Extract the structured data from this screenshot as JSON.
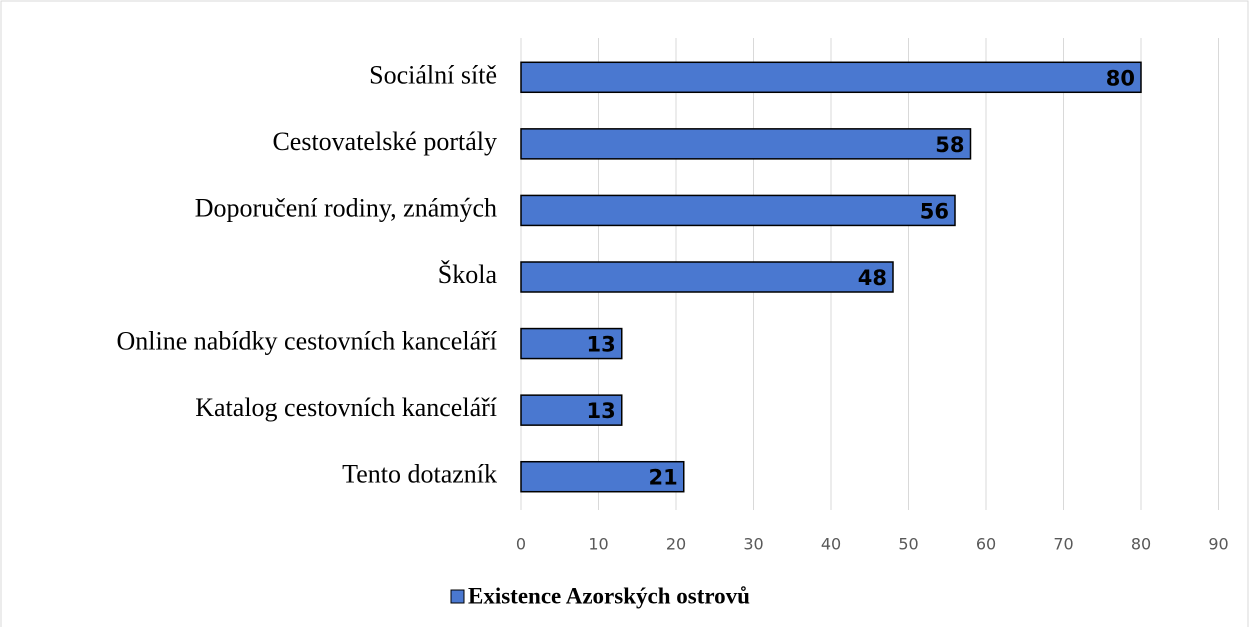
{
  "chart_data": {
    "type": "bar",
    "orientation": "horizontal",
    "categories": [
      "Sociální sítě",
      "Cestovatelské portály",
      "Doporučení rodiny, známých",
      "Škola",
      "Online nabídky cestovních kanceláří",
      "Katalog cestovních kanceláří",
      "Tento dotazník"
    ],
    "series": [
      {
        "name": "Existence Azorských ostrovů",
        "color": "#4a78d0",
        "values": [
          80,
          58,
          56,
          48,
          13,
          13,
          21
        ]
      }
    ],
    "xlim": [
      0,
      90
    ],
    "xticks": [
      0,
      10,
      20,
      30,
      40,
      50,
      60,
      70,
      80,
      90
    ],
    "grid": true,
    "legend": "bottom",
    "data_labels": true
  }
}
